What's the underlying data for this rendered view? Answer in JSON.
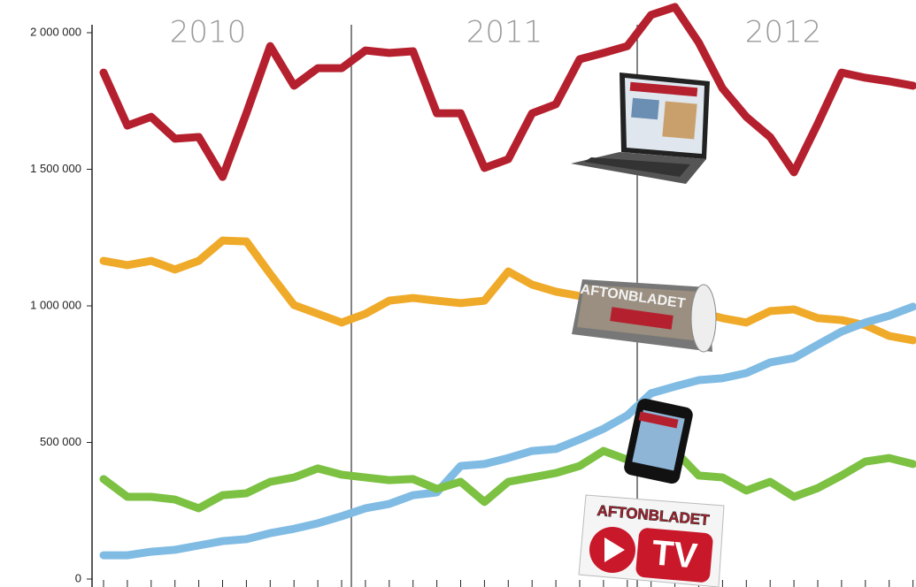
{
  "chart_data": {
    "type": "line",
    "categories": [
      null,
      null,
      null,
      null,
      null,
      null,
      null,
      null,
      null,
      null,
      null,
      null,
      null,
      null,
      null,
      null,
      null,
      null,
      null,
      null,
      null,
      null,
      null,
      null,
      null,
      null,
      null,
      null,
      null,
      null,
      null,
      null,
      null,
      null,
      null
    ],
    "year_labels": [
      "2010",
      "2011",
      "2012"
    ],
    "annotations": [
      "AFTONBLADET",
      "AFTONBLADET",
      "TV"
    ],
    "ylim": [
      0,
      2000000
    ],
    "yticks": [
      0,
      {
        "value": 500000,
        "label": "500 000"
      },
      {
        "value": 1000000,
        "label": "1 000 000"
      },
      {
        "value": 1500000,
        "label": "1 500 000"
      },
      {
        "value": 2000000,
        "label": "2 000 000"
      }
    ],
    "grid": false,
    "series": [
      {
        "color": "#b5202e",
        "values": [
          1854000,
          1660000,
          1692000,
          1612000,
          1618000,
          1472000,
          1705000,
          1951000,
          1806000,
          1870000,
          1870000,
          1935000,
          1926000,
          1932000,
          1705000,
          1705000,
          1505000,
          1537000,
          1705000,
          1738000,
          1903000,
          1926000,
          1951000,
          2065000,
          2094000,
          1964000,
          1796000,
          1692000,
          1618000,
          1489000,
          1667000,
          1854000,
          1835000,
          1822000,
          1806000
        ]
      },
      {
        "color": "#f0aa2a",
        "values": [
          1165000,
          1149000,
          1165000,
          1133000,
          1165000,
          1239000,
          1236000,
          1117000,
          1003000,
          971000,
          939000,
          971000,
          1019000,
          1029000,
          1019000,
          1010000,
          1019000,
          1126000,
          1078000,
          1052000,
          1036000,
          1019000,
          1003000,
          994000,
          987000,
          977000,
          955000,
          939000,
          981000,
          987000,
          955000,
          948000,
          929000,
          890000,
          874000
        ]
      },
      {
        "color": "#80bbe3",
        "values": [
          87000,
          87000,
          100000,
          107000,
          123000,
          139000,
          146000,
          168000,
          184000,
          204000,
          230000,
          259000,
          275000,
          307000,
          317000,
          414000,
          421000,
          443000,
          469000,
          476000,
          511000,
          550000,
          599000,
          680000,
          705000,
          728000,
          735000,
          754000,
          793000,
          809000,
          858000,
          906000,
          939000,
          964000,
          997000
        ]
      },
      {
        "color": "#7cc142",
        "values": [
          366000,
          301000,
          301000,
          291000,
          259000,
          307000,
          314000,
          356000,
          372000,
          405000,
          382000,
          372000,
          362000,
          366000,
          330000,
          356000,
          282000,
          356000,
          372000,
          388000,
          414000,
          469000,
          437000,
          453000,
          469000,
          379000,
          372000,
          324000,
          356000,
          301000,
          333000,
          379000,
          430000,
          443000,
          421000
        ]
      }
    ]
  }
}
